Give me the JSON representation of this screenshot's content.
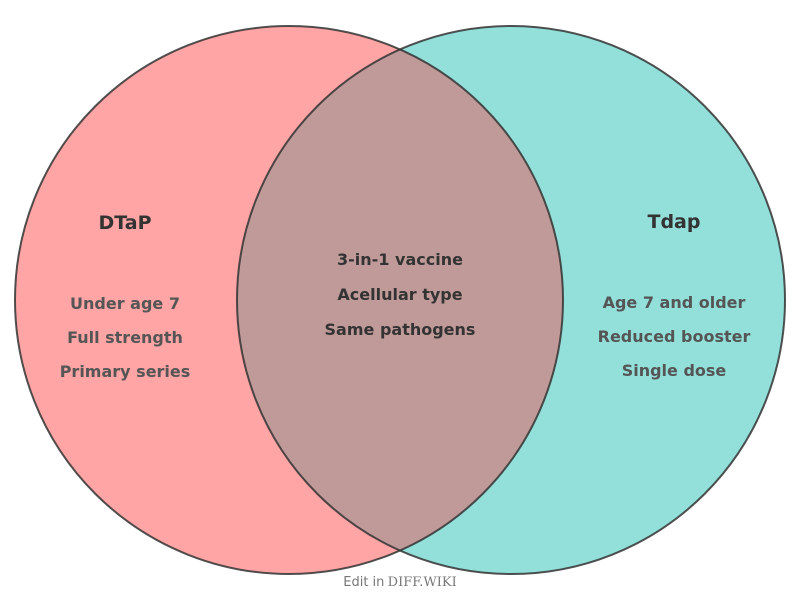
{
  "colors": {
    "left": "#ffa5a5",
    "right": "#93e0da",
    "overlap": "#c09a98",
    "stroke": "#333333"
  },
  "left": {
    "title": "DTaP",
    "items": [
      "Under age 7",
      "Full strength",
      "Primary series"
    ]
  },
  "right": {
    "title": "Tdap",
    "items": [
      "Age 7 and older",
      "Reduced booster",
      "Single dose"
    ]
  },
  "overlap": {
    "items": [
      "3-in-1 vaccine",
      "Acellular type",
      "Same pathogens"
    ]
  },
  "footer": {
    "prefix": "Edit in",
    "brand": "DIFF.WIKI"
  }
}
